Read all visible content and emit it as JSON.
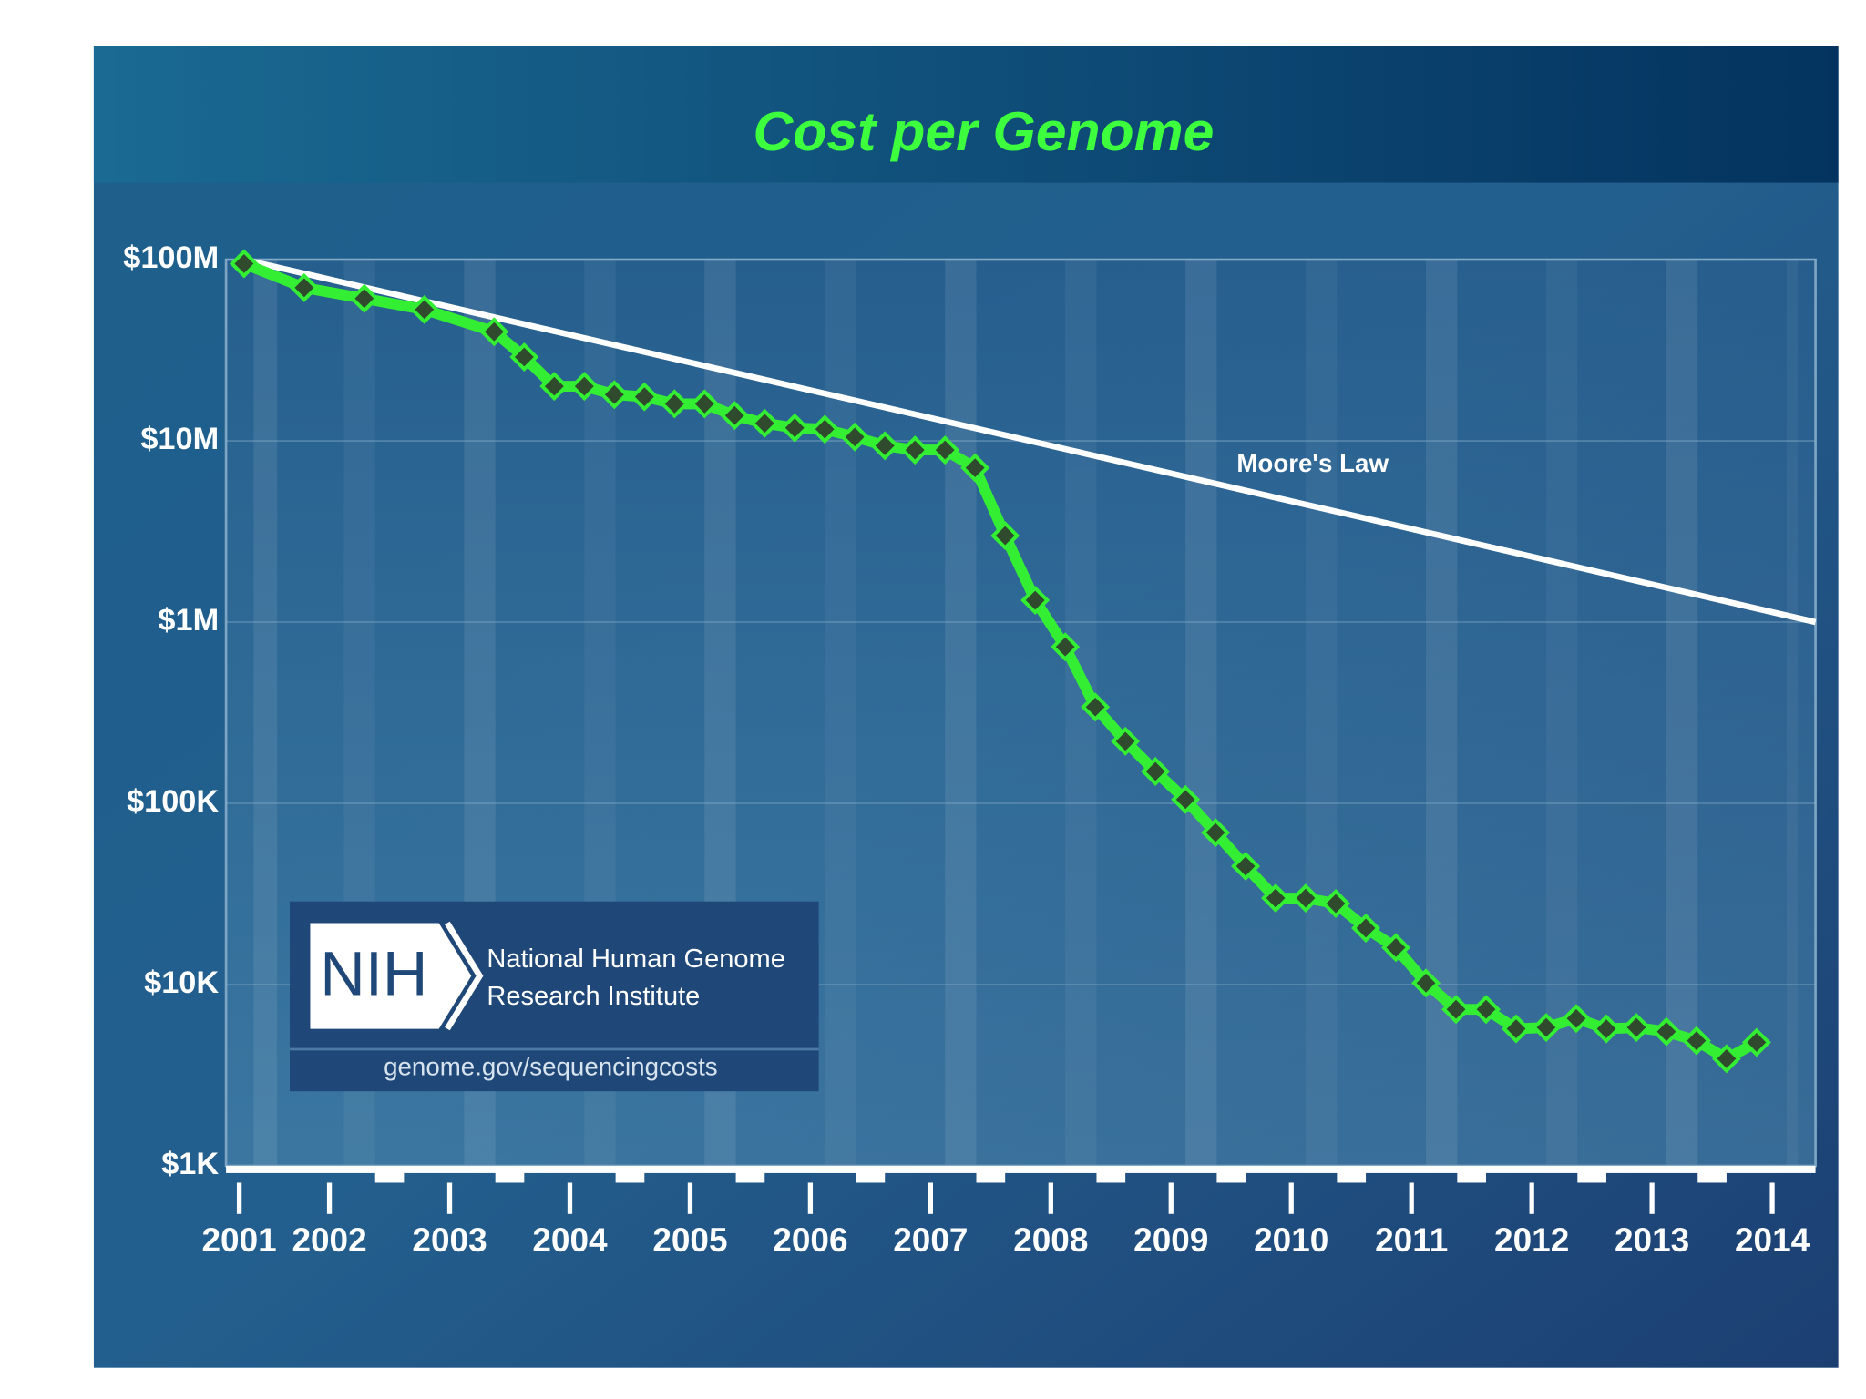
{
  "chart_data": {
    "type": "line",
    "title": "Cost per Genome",
    "yscale": "log",
    "ylim": [
      1000,
      100000000
    ],
    "yticks": [
      {
        "value": 100000000,
        "label": "$100M"
      },
      {
        "value": 10000000,
        "label": "$10M"
      },
      {
        "value": 1000000,
        "label": "$1M"
      },
      {
        "value": 100000,
        "label": "$100K"
      },
      {
        "value": 10000,
        "label": "$10K"
      },
      {
        "value": 1000,
        "label": "$1K"
      }
    ],
    "xlim": [
      2001.14,
      2014.36
    ],
    "xticks": [
      {
        "value": 2001.25,
        "label": "2001"
      },
      2002,
      2003,
      2004,
      2005,
      2006,
      2007,
      2008,
      2009,
      2010,
      2011,
      2012,
      2013,
      2014
    ],
    "grid": true,
    "series": [
      {
        "color": "#33ee33",
        "x": [
          2001.29,
          2001.79,
          2002.29,
          2002.79,
          2003.37,
          2003.62,
          2003.87,
          2004.12,
          2004.37,
          2004.62,
          2004.87,
          2005.12,
          2005.37,
          2005.62,
          2005.87,
          2006.12,
          2006.37,
          2006.62,
          2006.87,
          2007.12,
          2007.37,
          2007.62,
          2007.87,
          2008.12,
          2008.37,
          2008.62,
          2008.87,
          2009.12,
          2009.37,
          2009.62,
          2009.87,
          2010.12,
          2010.37,
          2010.62,
          2010.87,
          2011.12,
          2011.37,
          2011.62,
          2011.87,
          2012.12,
          2012.37,
          2012.62,
          2012.87,
          2013.12,
          2013.37,
          2013.62,
          2013.87
        ],
        "values": [
          95000000,
          70000000,
          61000000,
          53000000,
          40000000,
          29000000,
          20000000,
          20000000,
          18000000,
          17500000,
          16000000,
          16000000,
          13800000,
          12500000,
          11800000,
          11600000,
          10500000,
          9400000,
          8900000,
          8900000,
          7100000,
          3000000,
          1320000,
          730000,
          340000,
          220000,
          150000,
          105000,
          69000,
          45000,
          30000,
          30000,
          28000,
          20500,
          16000,
          10200,
          7300,
          7300,
          5700,
          5800,
          6500,
          5700,
          5800,
          5500,
          4900,
          3900,
          4800
        ]
      },
      {
        "name": "Moore's Law",
        "color": "#ffffff",
        "x": [
          2001.29,
          2014.36
        ],
        "values": [
          100000000,
          1000000
        ]
      }
    ]
  },
  "logo": {
    "mark": "NIH",
    "line1": "National Human Genome",
    "line2": "Research Institute",
    "url": "genome.gov/sequencingcosts"
  }
}
